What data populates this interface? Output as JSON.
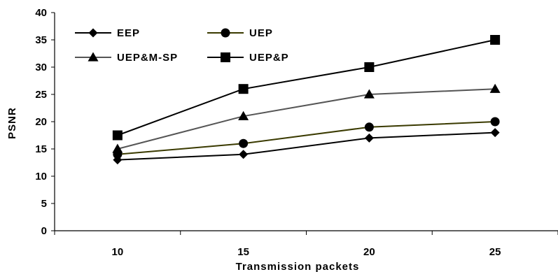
{
  "chart_data": {
    "type": "line",
    "title": "",
    "xlabel": "Transmission packets",
    "ylabel": "PSNR",
    "categories": [
      "10",
      "15",
      "20",
      "25"
    ],
    "x": [
      10,
      15,
      20,
      25
    ],
    "ylim": [
      0,
      40
    ],
    "yticks": [
      "0",
      "5",
      "10",
      "15",
      "20",
      "25",
      "30",
      "35",
      "40"
    ],
    "grid": false,
    "legend_position": "top-left",
    "series": [
      {
        "name": "EEP",
        "marker": "diamond",
        "color": "#000000",
        "values": [
          13,
          14,
          17,
          18
        ]
      },
      {
        "name": "UEP",
        "marker": "circle",
        "color": "#3a3a00",
        "values": [
          14,
          16,
          19,
          20
        ]
      },
      {
        "name": "UEP&M-SP",
        "marker": "triangle",
        "color": "#555555",
        "values": [
          15,
          21,
          25,
          26
        ]
      },
      {
        "name": "UEP&P",
        "marker": "square",
        "color": "#000000",
        "values": [
          17.5,
          26,
          30,
          35
        ]
      }
    ]
  }
}
